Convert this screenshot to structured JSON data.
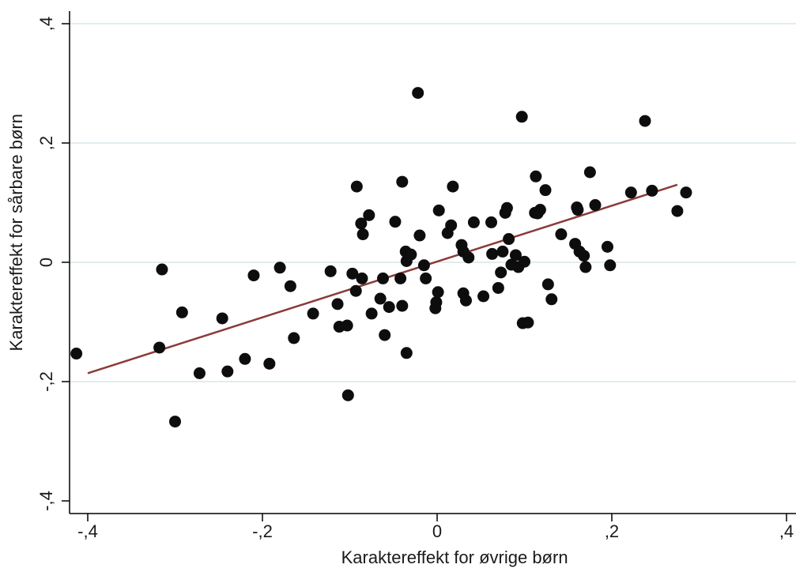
{
  "chart_data": {
    "type": "scatter",
    "title": "",
    "xlabel": "Karaktereffekt for øvrige børn",
    "ylabel": "Karaktereffekt for sårbare børn",
    "xlim": [
      -0.42,
      0.4
    ],
    "ylim": [
      -0.42,
      0.42
    ],
    "x_ticks": [
      -0.4,
      -0.2,
      0,
      0.2,
      0.4
    ],
    "x_tick_labels": [
      "-,4",
      "-,2",
      "0",
      ",2",
      ",4"
    ],
    "y_ticks": [
      -0.4,
      -0.2,
      0,
      0.2,
      0.4
    ],
    "y_tick_labels": [
      "-,4",
      "-,2",
      "0",
      ",2",
      ",4"
    ],
    "grid": "horizontal",
    "colors": {
      "points": "#0d0d0d",
      "fit_line": "#8b3a3a",
      "grid": "#d8e6ea",
      "axis": "#000000"
    },
    "points": [
      {
        "x": -0.413,
        "y": -0.153
      },
      {
        "x": -0.315,
        "y": -0.012
      },
      {
        "x": -0.318,
        "y": -0.143
      },
      {
        "x": -0.292,
        "y": -0.084
      },
      {
        "x": -0.3,
        "y": -0.267
      },
      {
        "x": -0.272,
        "y": -0.186
      },
      {
        "x": -0.246,
        "y": -0.094
      },
      {
        "x": -0.24,
        "y": -0.183
      },
      {
        "x": -0.22,
        "y": -0.162
      },
      {
        "x": -0.21,
        "y": -0.022
      },
      {
        "x": -0.192,
        "y": -0.17
      },
      {
        "x": -0.18,
        "y": -0.009
      },
      {
        "x": -0.168,
        "y": -0.04
      },
      {
        "x": -0.164,
        "y": -0.127
      },
      {
        "x": -0.142,
        "y": -0.086
      },
      {
        "x": -0.122,
        "y": -0.015
      },
      {
        "x": -0.114,
        "y": -0.07
      },
      {
        "x": -0.112,
        "y": -0.108
      },
      {
        "x": -0.103,
        "y": -0.106
      },
      {
        "x": -0.102,
        "y": -0.223
      },
      {
        "x": -0.097,
        "y": -0.019
      },
      {
        "x": -0.093,
        "y": -0.048
      },
      {
        "x": -0.092,
        "y": 0.127
      },
      {
        "x": -0.087,
        "y": 0.065
      },
      {
        "x": -0.086,
        "y": -0.027
      },
      {
        "x": -0.085,
        "y": 0.047
      },
      {
        "x": -0.078,
        "y": 0.079
      },
      {
        "x": -0.075,
        "y": -0.086
      },
      {
        "x": -0.065,
        "y": -0.061
      },
      {
        "x": -0.062,
        "y": -0.027
      },
      {
        "x": -0.06,
        "y": -0.122
      },
      {
        "x": -0.055,
        "y": -0.075
      },
      {
        "x": -0.048,
        "y": 0.068
      },
      {
        "x": -0.042,
        "y": -0.027
      },
      {
        "x": -0.04,
        "y": 0.135
      },
      {
        "x": -0.04,
        "y": -0.073
      },
      {
        "x": -0.036,
        "y": 0.018
      },
      {
        "x": -0.035,
        "y": 0.002
      },
      {
        "x": -0.035,
        "y": -0.152
      },
      {
        "x": -0.03,
        "y": 0.013
      },
      {
        "x": -0.022,
        "y": 0.284
      },
      {
        "x": -0.02,
        "y": 0.045
      },
      {
        "x": -0.015,
        "y": -0.005
      },
      {
        "x": -0.013,
        "y": -0.027
      },
      {
        "x": -0.002,
        "y": -0.077
      },
      {
        "x": -0.001,
        "y": -0.067
      },
      {
        "x": 0.001,
        "y": -0.05
      },
      {
        "x": 0.002,
        "y": 0.087
      },
      {
        "x": 0.012,
        "y": 0.049
      },
      {
        "x": 0.016,
        "y": 0.062
      },
      {
        "x": 0.018,
        "y": 0.127
      },
      {
        "x": 0.028,
        "y": 0.029
      },
      {
        "x": 0.03,
        "y": 0.018
      },
      {
        "x": 0.03,
        "y": -0.052
      },
      {
        "x": 0.033,
        "y": -0.064
      },
      {
        "x": 0.036,
        "y": 0.008
      },
      {
        "x": 0.042,
        "y": 0.067
      },
      {
        "x": 0.053,
        "y": -0.057
      },
      {
        "x": 0.062,
        "y": 0.067
      },
      {
        "x": 0.063,
        "y": 0.014
      },
      {
        "x": 0.07,
        "y": -0.043
      },
      {
        "x": 0.073,
        "y": -0.017
      },
      {
        "x": 0.075,
        "y": 0.018
      },
      {
        "x": 0.078,
        "y": 0.083
      },
      {
        "x": 0.08,
        "y": 0.091
      },
      {
        "x": 0.082,
        "y": 0.039
      },
      {
        "x": 0.085,
        "y": -0.004
      },
      {
        "x": 0.09,
        "y": 0.012
      },
      {
        "x": 0.093,
        "y": -0.008
      },
      {
        "x": 0.097,
        "y": 0.244
      },
      {
        "x": 0.098,
        "y": -0.102
      },
      {
        "x": 0.1,
        "y": 0.001
      },
      {
        "x": 0.104,
        "y": -0.101
      },
      {
        "x": 0.112,
        "y": 0.083
      },
      {
        "x": 0.113,
        "y": 0.144
      },
      {
        "x": 0.115,
        "y": 0.082
      },
      {
        "x": 0.118,
        "y": 0.088
      },
      {
        "x": 0.124,
        "y": 0.121
      },
      {
        "x": 0.127,
        "y": -0.037
      },
      {
        "x": 0.131,
        "y": -0.062
      },
      {
        "x": 0.142,
        "y": 0.047
      },
      {
        "x": 0.158,
        "y": 0.031
      },
      {
        "x": 0.16,
        "y": 0.092
      },
      {
        "x": 0.161,
        "y": 0.088
      },
      {
        "x": 0.163,
        "y": 0.018
      },
      {
        "x": 0.168,
        "y": 0.011
      },
      {
        "x": 0.17,
        "y": -0.008
      },
      {
        "x": 0.175,
        "y": 0.151
      },
      {
        "x": 0.181,
        "y": 0.096
      },
      {
        "x": 0.195,
        "y": 0.026
      },
      {
        "x": 0.198,
        "y": -0.005
      },
      {
        "x": 0.222,
        "y": 0.117
      },
      {
        "x": 0.238,
        "y": 0.237
      },
      {
        "x": 0.246,
        "y": 0.12
      },
      {
        "x": 0.275,
        "y": 0.086
      },
      {
        "x": 0.285,
        "y": 0.117
      }
    ],
    "fit_line": {
      "x": [
        -0.4,
        0.275
      ],
      "y": [
        -0.186,
        0.13
      ]
    }
  }
}
